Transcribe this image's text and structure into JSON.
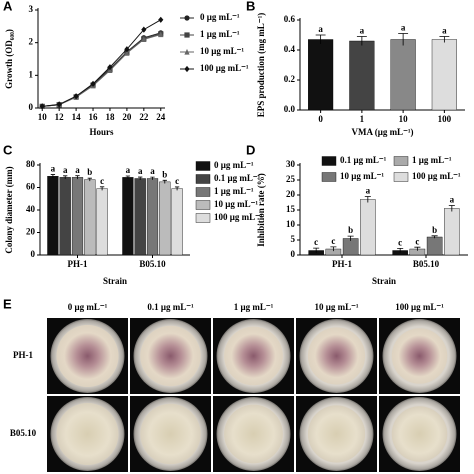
{
  "chart_data": [
    {
      "type": "line",
      "panel": "A",
      "ylabel": "Growth (OD₆₀₀)",
      "xlabel": "Hours",
      "x": [
        10,
        12,
        14,
        16,
        18,
        20,
        22,
        24
      ],
      "xlim": [
        9.5,
        24.5
      ],
      "xticks": [
        10,
        12,
        14,
        16,
        18,
        20,
        22,
        24
      ],
      "ylim": [
        0,
        3
      ],
      "yticks": [
        0,
        1,
        2,
        3
      ],
      "legend": "right",
      "series": [
        {
          "name": "0 μg mL⁻¹",
          "color": "#222222",
          "marker": "circle",
          "values": [
            0.05,
            0.1,
            0.35,
            0.72,
            1.2,
            1.72,
            2.15,
            2.3
          ]
        },
        {
          "name": "1 μg mL⁻¹",
          "color": "#444444",
          "marker": "square",
          "values": [
            0.05,
            0.1,
            0.34,
            0.7,
            1.18,
            1.7,
            2.12,
            2.27
          ]
        },
        {
          "name": "10 μg mL⁻¹",
          "color": "#666666",
          "marker": "triangle",
          "values": [
            0.05,
            0.1,
            0.33,
            0.68,
            1.15,
            1.68,
            2.1,
            2.25
          ]
        },
        {
          "name": "100 μg mL⁻¹",
          "color": "#111111",
          "marker": "diamond",
          "values": [
            0.05,
            0.11,
            0.36,
            0.74,
            1.25,
            1.8,
            2.4,
            2.7
          ]
        }
      ]
    },
    {
      "type": "bar",
      "panel": "B",
      "ylabel": "EPS production (mg mL⁻¹)",
      "xlabel": "VMA (μg mL⁻¹)",
      "categories": [
        "0",
        "1",
        "10",
        "100"
      ],
      "values": [
        0.47,
        0.46,
        0.47,
        0.47
      ],
      "errors": [
        0.03,
        0.03,
        0.04,
        0.02
      ],
      "letters": [
        "a",
        "a",
        "a",
        "a"
      ],
      "colors": [
        "#111111",
        "#444444",
        "#888888",
        "#dddddd"
      ],
      "ylim": [
        0,
        0.6
      ],
      "yticks": [
        {
          "value": 0,
          "label": "0.0"
        },
        0.2,
        0.4,
        0.6
      ]
    },
    {
      "type": "bar",
      "panel": "C",
      "ylabel": "Colony diameter (mm)",
      "xlabel": "Strain",
      "categories": [
        "PH-1",
        "B05.10"
      ],
      "ylim": [
        0,
        80
      ],
      "yticks": [
        0,
        20,
        40,
        60,
        80
      ],
      "legend": "right",
      "series": [
        {
          "name": "0 μg mL⁻¹",
          "color": "#111111",
          "values": [
            70,
            69
          ],
          "errors": [
            1.5,
            1.2
          ],
          "letters": [
            "a",
            "a"
          ]
        },
        {
          "name": "0.1 μg mL⁻¹",
          "color": "#444444",
          "values": [
            69,
            68
          ],
          "errors": [
            1.4,
            1.3
          ],
          "letters": [
            "a",
            "a"
          ]
        },
        {
          "name": "1 μg mL⁻¹",
          "color": "#777777",
          "values": [
            69,
            68
          ],
          "errors": [
            1.5,
            1.2
          ],
          "letters": [
            "a",
            "a"
          ]
        },
        {
          "name": "10 μg mL⁻¹",
          "color": "#bbbbbb",
          "values": [
            67,
            65
          ],
          "errors": [
            1.3,
            1.4
          ],
          "letters": [
            "b",
            "b"
          ]
        },
        {
          "name": "100 μg mL⁻¹",
          "color": "#dddddd",
          "values": [
            59,
            59
          ],
          "errors": [
            1.6,
            1.5
          ],
          "letters": [
            "c",
            "c"
          ]
        }
      ]
    },
    {
      "type": "bar",
      "panel": "D",
      "ylabel": "Inhibition rate (%)",
      "xlabel": "Strain",
      "categories": [
        "PH-1",
        "B05.10"
      ],
      "ylim": [
        0,
        30
      ],
      "yticks": [
        0,
        5,
        10,
        15,
        20,
        25,
        30
      ],
      "legend": "top",
      "series": [
        {
          "name": "0.1 μg mL⁻¹",
          "color": "#111111",
          "values": [
            1.5,
            1.5
          ],
          "errors": [
            0.8,
            0.7
          ],
          "letters": [
            "c",
            "c"
          ]
        },
        {
          "name": "1 μg mL⁻¹",
          "color": "#aaaaaa",
          "values": [
            2,
            2
          ],
          "errors": [
            0.7,
            0.6
          ],
          "letters": [
            "c",
            "c"
          ]
        },
        {
          "name": "10 μg mL⁻¹",
          "color": "#777777",
          "values": [
            5.5,
            6
          ],
          "errors": [
            0.8,
            0.4
          ],
          "letters": [
            "b",
            "b"
          ]
        },
        {
          "name": "100 μg mL⁻¹",
          "color": "#dddddd",
          "values": [
            18.5,
            15.5
          ],
          "errors": [
            1.0,
            1.0
          ],
          "letters": [
            "a",
            "a"
          ]
        }
      ]
    }
  ],
  "panel_e": {
    "panel": "E",
    "columns": [
      "0 μg mL⁻¹",
      "0.1 μg mL⁻¹",
      "1 μg mL⁻¹",
      "10 μg mL⁻¹",
      "100 μg mL⁻¹"
    ],
    "rows": [
      "PH-1",
      "B05.10"
    ]
  }
}
